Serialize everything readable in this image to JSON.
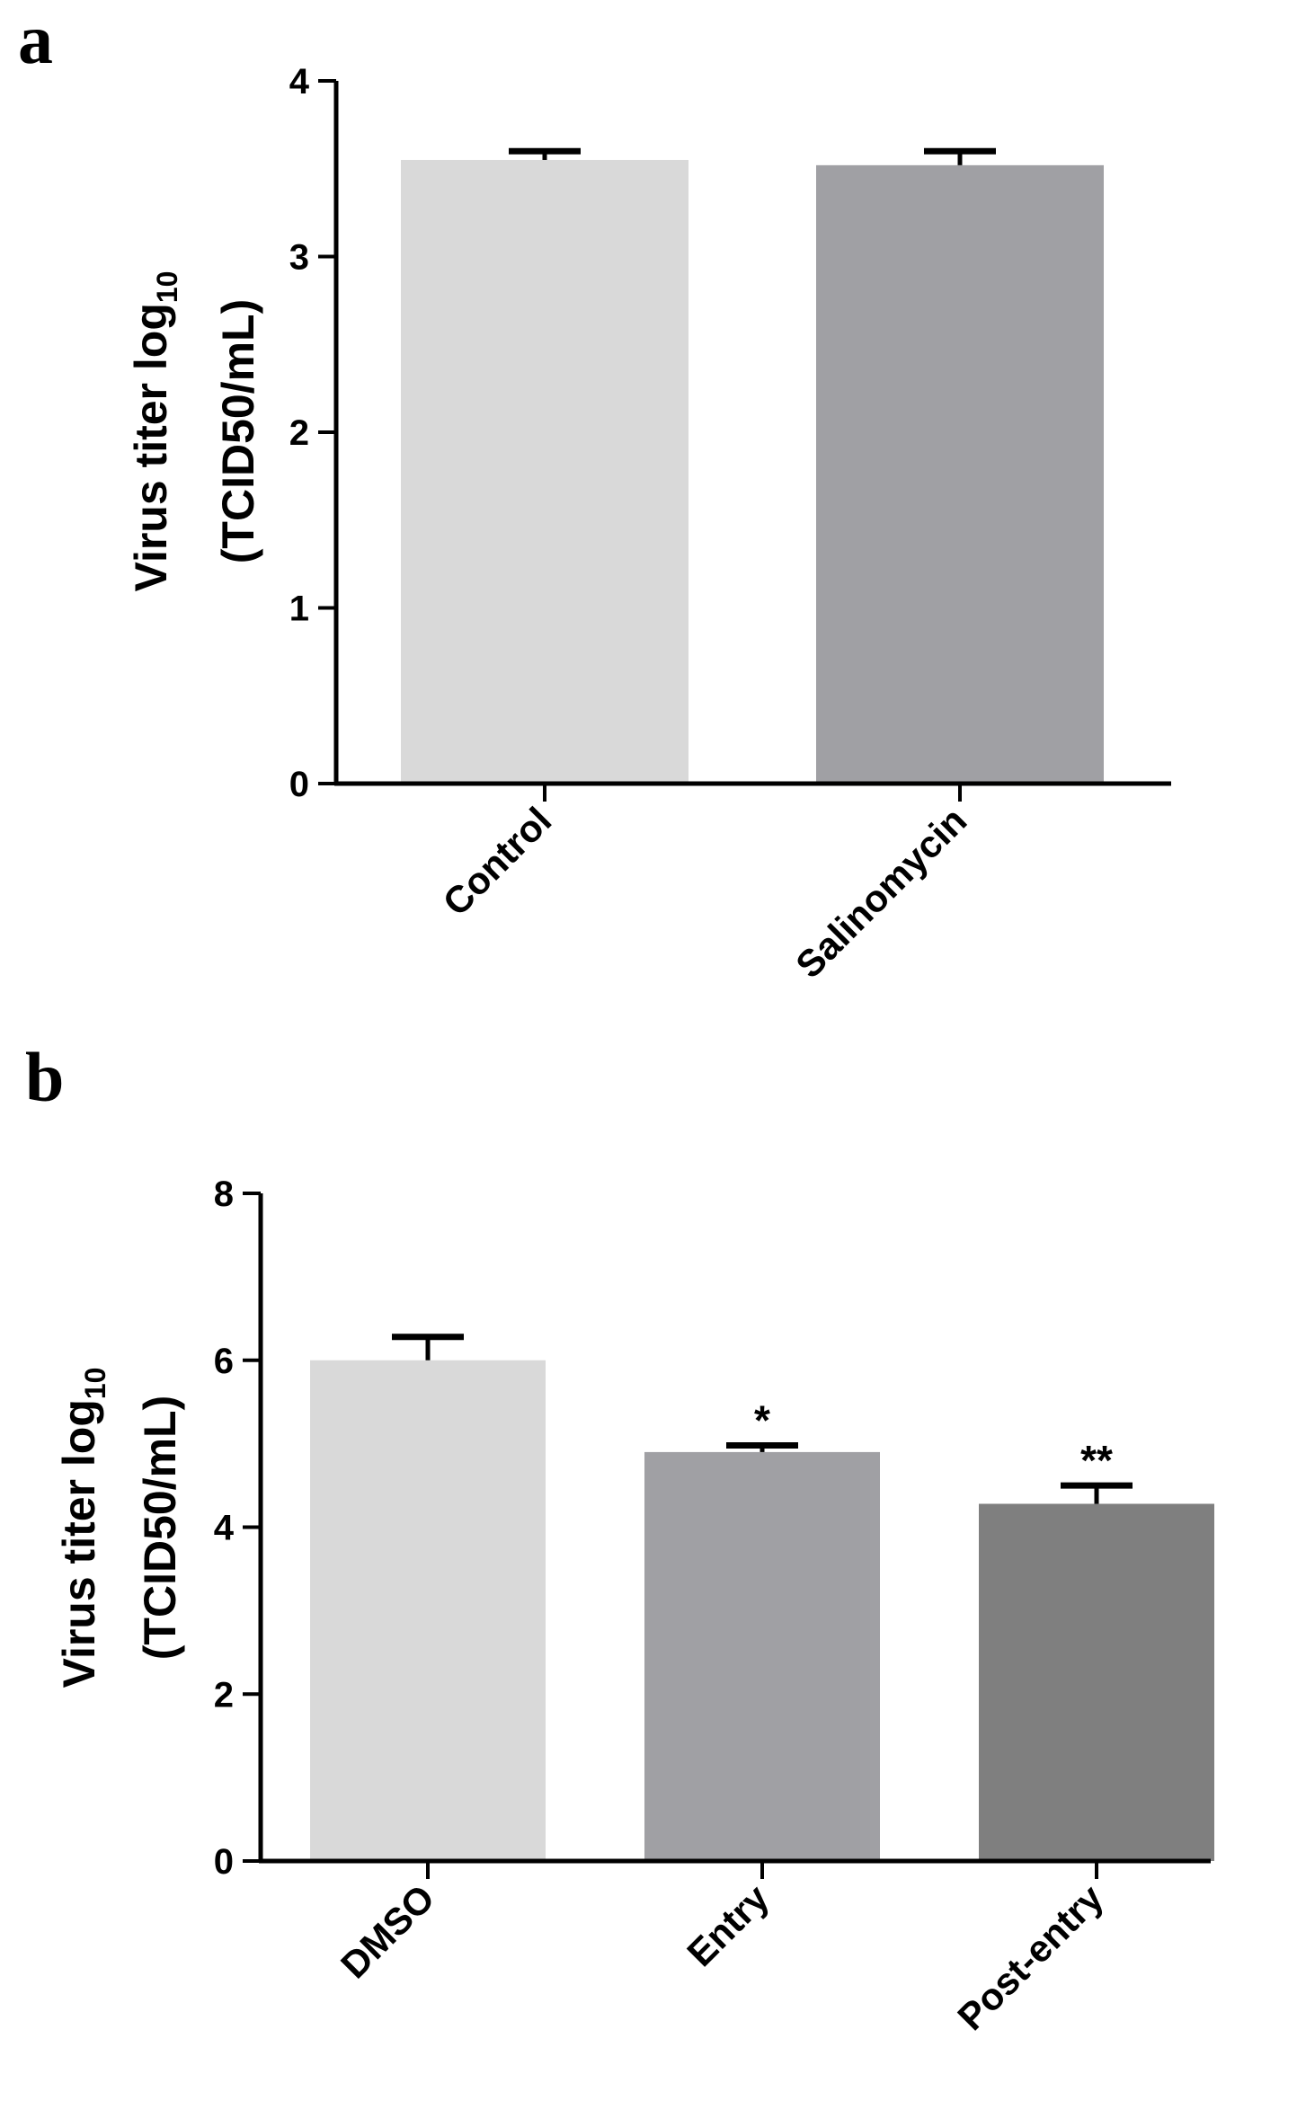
{
  "panels": {
    "a": {
      "label": "a"
    },
    "b": {
      "label": "b"
    }
  },
  "chart_data": [
    {
      "type": "bar",
      "panel": "a",
      "categories": [
        "Control",
        "Salinomycin"
      ],
      "values": [
        3.55,
        3.52
      ],
      "errors": [
        0.05,
        0.08
      ],
      "significance": [
        "",
        ""
      ],
      "colors": [
        "#d9d9d9",
        "#a0a0a4"
      ],
      "ylabel_line1": "Virus titer log",
      "ylabel_sub": "10",
      "ylabel_line2": "(TCID50/mL)",
      "ylim": [
        0,
        4
      ],
      "yticks": [
        0,
        1,
        2,
        3,
        4
      ]
    },
    {
      "type": "bar",
      "panel": "b",
      "categories": [
        "DMSO",
        "Entry",
        "Post-entry"
      ],
      "values": [
        6.0,
        4.9,
        4.28
      ],
      "errors": [
        0.28,
        0.08,
        0.22
      ],
      "significance": [
        "",
        "*",
        "**"
      ],
      "colors": [
        "#d9d9d9",
        "#a0a0a4",
        "#7f7f7f"
      ],
      "ylabel_line1": "Virus titer log",
      "ylabel_sub": "10",
      "ylabel_line2": "(TCID50/mL)",
      "ylim": [
        0,
        8
      ],
      "yticks": [
        0,
        2,
        4,
        6,
        8
      ]
    }
  ]
}
